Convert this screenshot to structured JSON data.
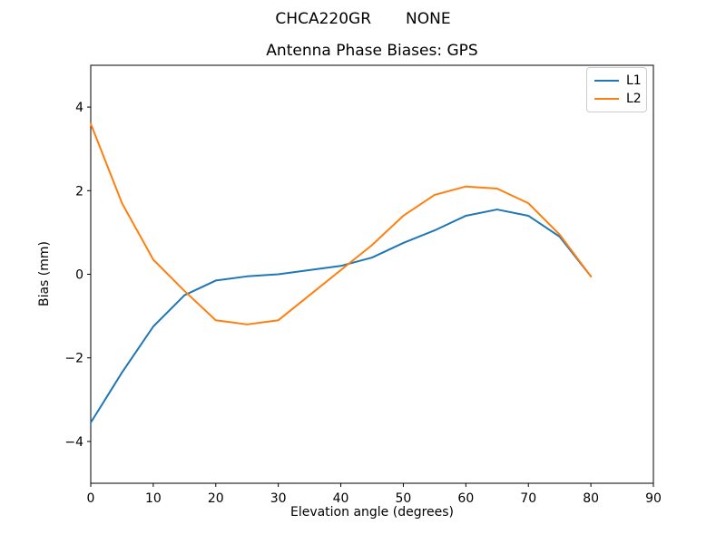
{
  "header": {
    "station": "CHCA220GR",
    "solution": "NONE"
  },
  "chart_data": {
    "type": "line",
    "title": "Antenna Phase Biases: GPS",
    "xlabel": "Elevation angle (degrees)",
    "ylabel": "Bias (mm)",
    "xlim": [
      0,
      90
    ],
    "ylim": [
      -5,
      5
    ],
    "xticks": [
      0,
      10,
      20,
      30,
      40,
      50,
      60,
      70,
      80,
      90
    ],
    "yticks": [
      -4,
      -2,
      0,
      2,
      4
    ],
    "grid": false,
    "legend_position": "upper right",
    "x": [
      0,
      5,
      10,
      15,
      20,
      25,
      30,
      35,
      40,
      45,
      50,
      55,
      60,
      65,
      70,
      75,
      80
    ],
    "series": [
      {
        "name": "L1",
        "color": "#1f77b4",
        "values": [
          -3.55,
          -2.35,
          -1.25,
          -0.5,
          -0.15,
          -0.05,
          0.0,
          0.1,
          0.2,
          0.4,
          0.75,
          1.05,
          1.4,
          1.55,
          1.4,
          0.9,
          -0.05
        ]
      },
      {
        "name": "L2",
        "color": "#ff7f0e",
        "values": [
          3.6,
          1.7,
          0.35,
          -0.4,
          -1.1,
          -1.2,
          -1.1,
          -0.5,
          0.1,
          0.7,
          1.4,
          1.9,
          2.1,
          2.05,
          1.7,
          0.95,
          -0.05
        ]
      }
    ],
    "axis_color": "#000000",
    "background": "#ffffff"
  }
}
